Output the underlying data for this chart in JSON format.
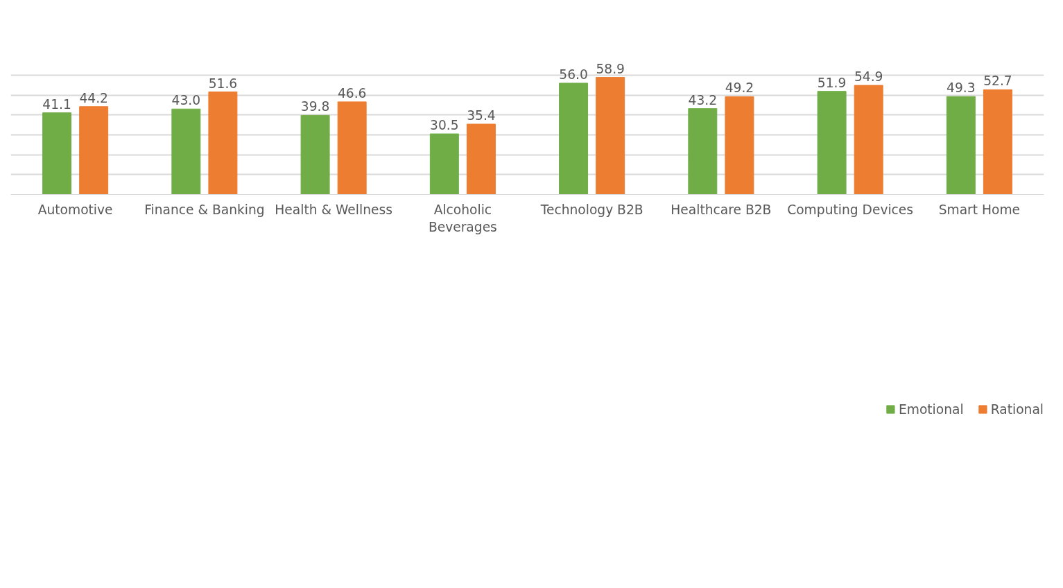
{
  "chart_data": {
    "type": "bar",
    "categories": [
      "Automotive",
      "Finance & Banking",
      "Health & Wellness",
      "Alcoholic\nBeverages",
      "Technology B2B",
      "Healthcare B2B",
      "Computing Devices",
      "Smart Home"
    ],
    "series": [
      {
        "name": "Emotional",
        "color": "#70ad47",
        "values": [
          41.1,
          43.0,
          39.8,
          30.5,
          56.0,
          43.2,
          51.9,
          49.3
        ],
        "value_labels": [
          "41.1",
          "43.0",
          "39.8",
          "30.5",
          "56.0",
          "43.2",
          "51.9",
          "49.3"
        ]
      },
      {
        "name": "Rational",
        "color": "#ed7d31",
        "values": [
          44.2,
          51.6,
          46.6,
          35.4,
          58.9,
          49.2,
          54.9,
          52.7
        ],
        "value_labels": [
          "44.2",
          "51.6",
          "46.6",
          "35.4",
          "58.9",
          "49.2",
          "54.9",
          "52.7"
        ]
      }
    ],
    "tick_labels": "x",
    "grid": "y",
    "legend": "bottom"
  }
}
